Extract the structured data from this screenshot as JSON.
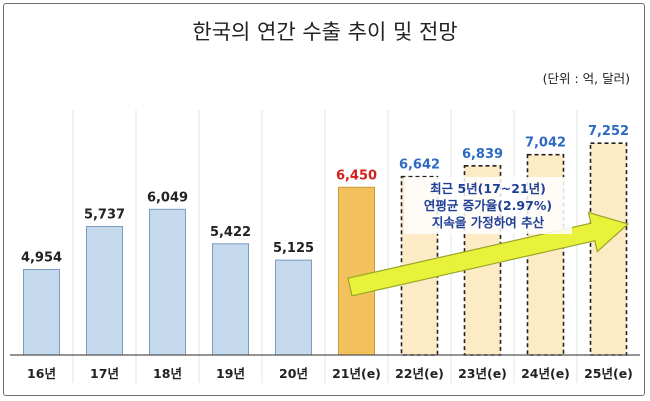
{
  "chart_data": {
    "type": "bar",
    "title": "한국의 연간 수출 추이 및 전망",
    "unit_note": "(단위 : 억, 달러)",
    "categories": [
      "16년",
      "17년",
      "18년",
      "19년",
      "20년",
      "21년(e)",
      "22년(e)",
      "23년(e)",
      "24년(e)",
      "25년(e)"
    ],
    "values": [
      4954,
      5737,
      6049,
      5422,
      5125,
      6450,
      6642,
      6839,
      7042,
      7252
    ],
    "value_labels": [
      "4,954",
      "5,737",
      "6,049",
      "5,422",
      "5,125",
      "6,450",
      "6,642",
      "6,839",
      "7,042",
      "7,252"
    ],
    "bar_kind": [
      "actual",
      "actual",
      "actual",
      "actual",
      "actual",
      "estimate",
      "forecast",
      "forecast",
      "forecast",
      "forecast"
    ],
    "ylim": [
      3400,
      7400
    ],
    "grid": false,
    "colors": {
      "actual_fill": "#c5d9ec",
      "actual_stroke": "#7b9cc0",
      "estimate_fill": "#f3c15c",
      "estimate_stroke": "#c79a3a",
      "forecast_fill": "#fdebc6",
      "forecast_stroke": "#222222",
      "estimate_label": "#d0201c",
      "forecast_label": "#2e6ac2",
      "actual_label": "#222222",
      "arrow_fill": "#e8f23a",
      "arrow_stroke": "#9aa626",
      "annotation_text": "#1f3f96"
    },
    "annotation": {
      "lines": [
        "최근 5년(17~21년)",
        "연평균 증가율(2.97%)",
        "지속을 가정하여 추산"
      ]
    }
  }
}
